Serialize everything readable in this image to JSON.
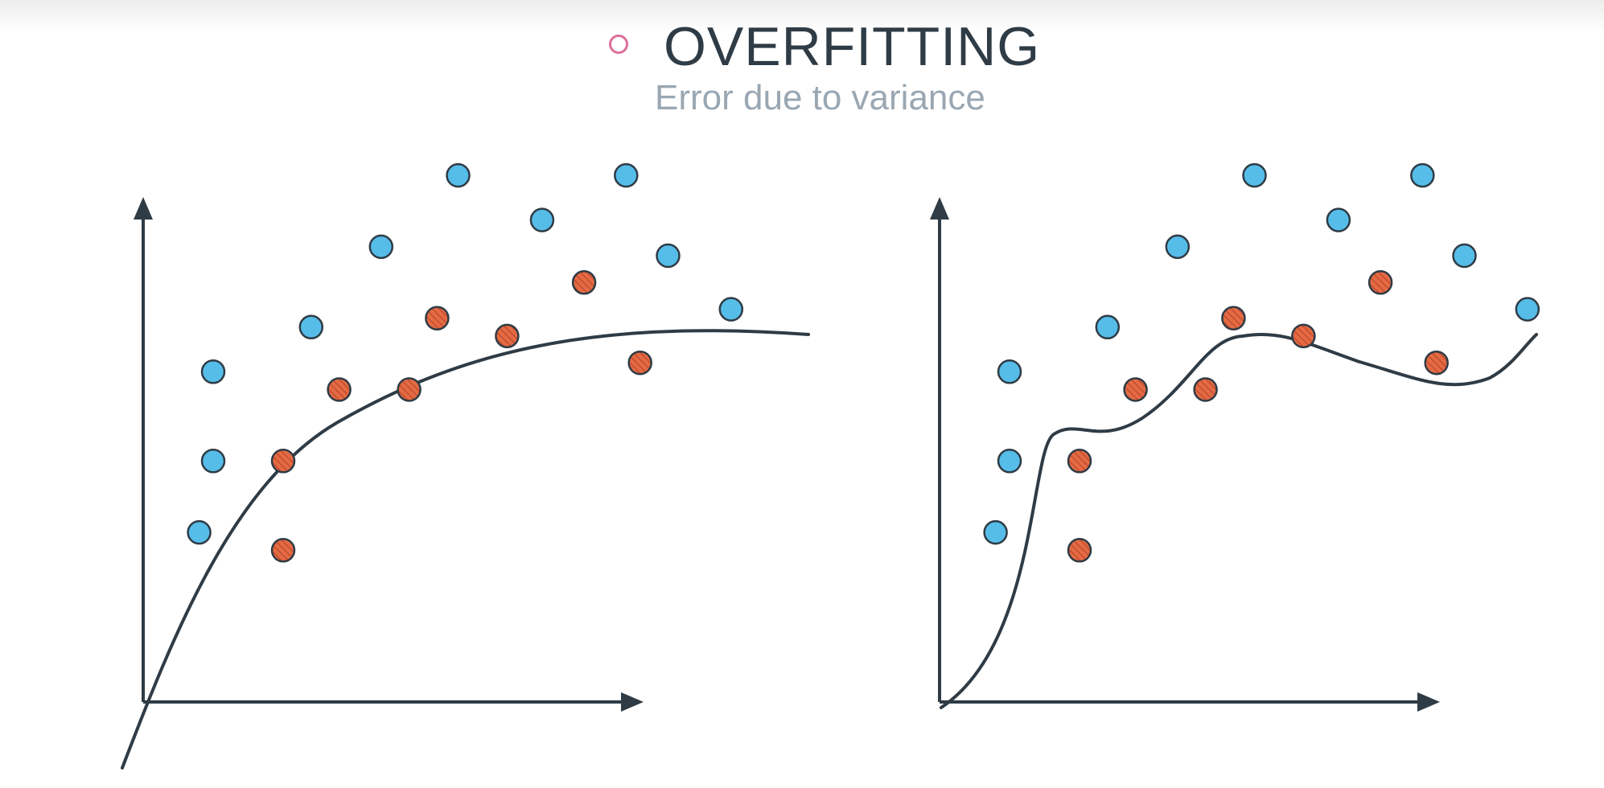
{
  "header": {
    "title": "OVERFITTING",
    "subtitle": "Error due to variance",
    "bullet_icon": "circle-outline-icon",
    "bullet_color": "#dd6f9a"
  },
  "colors": {
    "axis": "#2f3b45",
    "curve": "#2f3b45",
    "class_a_fill": "#56bde9",
    "class_b_fill": "#e56a43",
    "class_b_pattern": "diagonal-hatch",
    "point_outline": "#2f3b45"
  },
  "chart_data": [
    {
      "type": "scatter",
      "panel": "left",
      "fit": "smooth-underfit-curve",
      "series": [
        {
          "values": [
            [
              8,
              19
            ],
            [
              10,
              27
            ],
            [
              10,
              37
            ],
            [
              24,
              42
            ],
            [
              34,
              51
            ],
            [
              45,
              59
            ],
            [
              57,
              54
            ],
            [
              69,
              59
            ],
            [
              75,
              50
            ],
            [
              84,
              44
            ]
          ]
        },
        {
          "values": [
            [
              20,
              17
            ],
            [
              20,
              27
            ],
            [
              28,
              35
            ],
            [
              38,
              35
            ],
            [
              42,
              43
            ],
            [
              52,
              41
            ],
            [
              63,
              47
            ],
            [
              71,
              38
            ]
          ]
        }
      ]
    },
    {
      "type": "scatter",
      "panel": "right",
      "fit": "wiggly-overfit-curve",
      "series": [
        {
          "values": [
            [
              8,
              19
            ],
            [
              10,
              27
            ],
            [
              10,
              37
            ],
            [
              24,
              42
            ],
            [
              34,
              51
            ],
            [
              45,
              59
            ],
            [
              57,
              54
            ],
            [
              69,
              59
            ],
            [
              75,
              50
            ],
            [
              84,
              44
            ]
          ]
        },
        {
          "values": [
            [
              20,
              17
            ],
            [
              20,
              27
            ],
            [
              28,
              35
            ],
            [
              38,
              35
            ],
            [
              42,
              43
            ],
            [
              52,
              41
            ],
            [
              63,
              47
            ],
            [
              71,
              38
            ]
          ]
        }
      ]
    }
  ]
}
